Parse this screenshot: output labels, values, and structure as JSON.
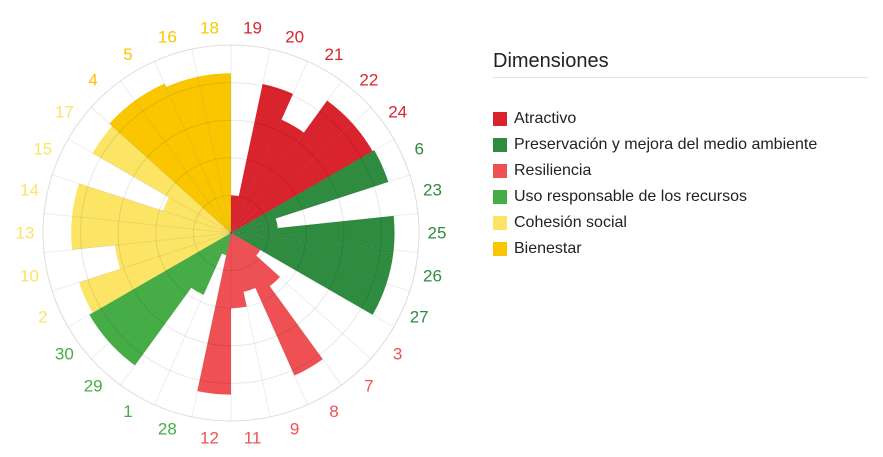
{
  "chart_data": {
    "type": "polar-area",
    "title": "",
    "legend_title": "Dimensiones",
    "legend_position": "right",
    "grid": true,
    "rmax": 100,
    "rings": [
      20,
      40,
      60,
      80,
      100
    ],
    "categories": [
      {
        "name": "Atractivo",
        "color": "#d9232d"
      },
      {
        "name": "Preservación y mejora del medio ambiente",
        "color": "#2e8b3f"
      },
      {
        "name": "Resiliencia",
        "color": "#ef5053"
      },
      {
        "name": "Uso responsable de los recursos",
        "color": "#46ad46"
      },
      {
        "name": "Cohesión social",
        "color": "#fce464"
      },
      {
        "name": "Bienestar",
        "color": "#f9c600"
      }
    ],
    "sectors": [
      {
        "label": "19",
        "category": 0,
        "value": 20
      },
      {
        "label": "20",
        "category": 0,
        "value": 81
      },
      {
        "label": "21",
        "category": 0,
        "value": 66
      },
      {
        "label": "22",
        "category": 0,
        "value": 87
      },
      {
        "label": "24",
        "category": 0,
        "value": 87
      },
      {
        "label": "6",
        "category": 1,
        "value": 88
      },
      {
        "label": "23",
        "category": 1,
        "value": 25
      },
      {
        "label": "25",
        "category": 1,
        "value": 87
      },
      {
        "label": "26",
        "category": 1,
        "value": 87
      },
      {
        "label": "27",
        "category": 1,
        "value": 87
      },
      {
        "label": "3",
        "category": 2,
        "value": 18
      },
      {
        "label": "7",
        "category": 2,
        "value": 35
      },
      {
        "label": "8",
        "category": 2,
        "value": 83
      },
      {
        "label": "9",
        "category": 2,
        "value": 32
      },
      {
        "label": "11",
        "category": 2,
        "value": 40
      },
      {
        "label": "12",
        "category": 2,
        "value": 86
      },
      {
        "label": "28",
        "category": 3,
        "value": 12
      },
      {
        "label": "1",
        "category": 3,
        "value": 36
      },
      {
        "label": "29",
        "category": 3,
        "value": 87
      },
      {
        "label": "30",
        "category": 3,
        "value": 87
      },
      {
        "label": "2",
        "category": 4,
        "value": 85
      },
      {
        "label": "10",
        "category": 4,
        "value": 62
      },
      {
        "label": "13",
        "category": 4,
        "value": 85
      },
      {
        "label": "14",
        "category": 4,
        "value": 85
      },
      {
        "label": "15",
        "category": 4,
        "value": 38
      },
      {
        "label": "17",
        "category": 4,
        "value": 85
      },
      {
        "label": "4",
        "category": 5,
        "value": 87
      },
      {
        "label": "5",
        "category": 5,
        "value": 87
      },
      {
        "label": "16",
        "category": 5,
        "value": 85
      },
      {
        "label": "18",
        "category": 5,
        "value": 85
      }
    ]
  }
}
